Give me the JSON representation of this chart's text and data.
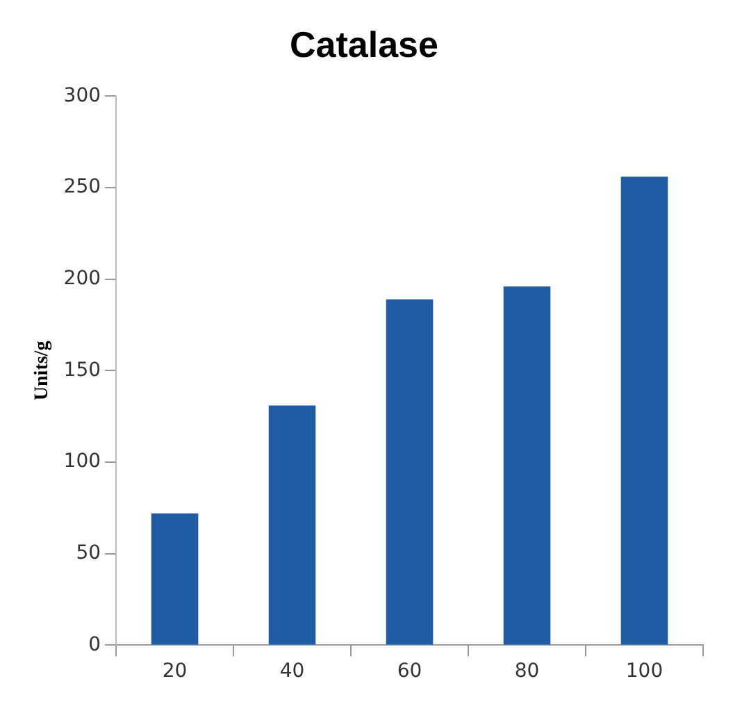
{
  "chart_data": {
    "type": "bar",
    "title": "Catalase",
    "ylabel": "Units/g",
    "categories": [
      "20",
      "40",
      "60",
      "80",
      "100"
    ],
    "values": [
      72,
      131,
      189,
      196,
      256
    ],
    "color": "#1f5ca3",
    "ylim": [
      0,
      300
    ],
    "yticks": [
      0,
      50,
      100,
      150,
      200,
      250,
      300
    ],
    "grid": false,
    "legend": false
  }
}
